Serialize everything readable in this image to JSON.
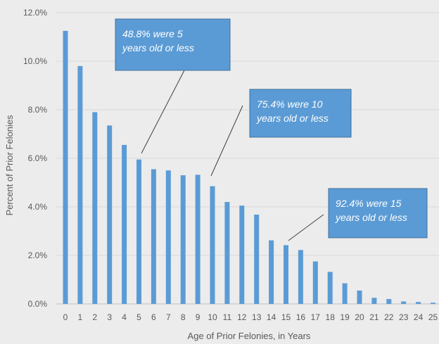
{
  "chart_data": {
    "type": "bar",
    "title": "",
    "xlabel": "Age of Prior Felonies, in Years",
    "ylabel": "Percent of Prior Felonies",
    "ylim": [
      0,
      12
    ],
    "yticks": [
      "0.0%",
      "2.0%",
      "4.0%",
      "6.0%",
      "8.0%",
      "10.0%",
      "12.0%"
    ],
    "grid": true,
    "bar_color": "#5b9bd5",
    "categories": [
      "0",
      "1",
      "2",
      "3",
      "4",
      "5",
      "6",
      "7",
      "8",
      "9",
      "10",
      "11",
      "12",
      "13",
      "14",
      "15",
      "16",
      "17",
      "18",
      "19",
      "20",
      "21",
      "22",
      "23",
      "24",
      "25"
    ],
    "values": [
      11.25,
      9.8,
      7.9,
      7.35,
      6.55,
      5.95,
      5.55,
      5.5,
      5.3,
      5.32,
      4.85,
      4.2,
      4.05,
      3.68,
      2.62,
      2.42,
      2.22,
      1.75,
      1.32,
      0.85,
      0.55,
      0.25,
      0.2,
      0.1,
      0.08,
      0.05
    ],
    "annotations": [
      {
        "text_lines": [
          "48.8% were 5",
          "years old or less"
        ],
        "points_to": "5"
      },
      {
        "text_lines": [
          "75.4% were 10",
          "years old or less"
        ],
        "points_to": "10"
      },
      {
        "text_lines": [
          "92.4% were 15",
          "years old or less"
        ],
        "points_to": "15"
      }
    ],
    "annotation_color": "#5b9bd5"
  }
}
